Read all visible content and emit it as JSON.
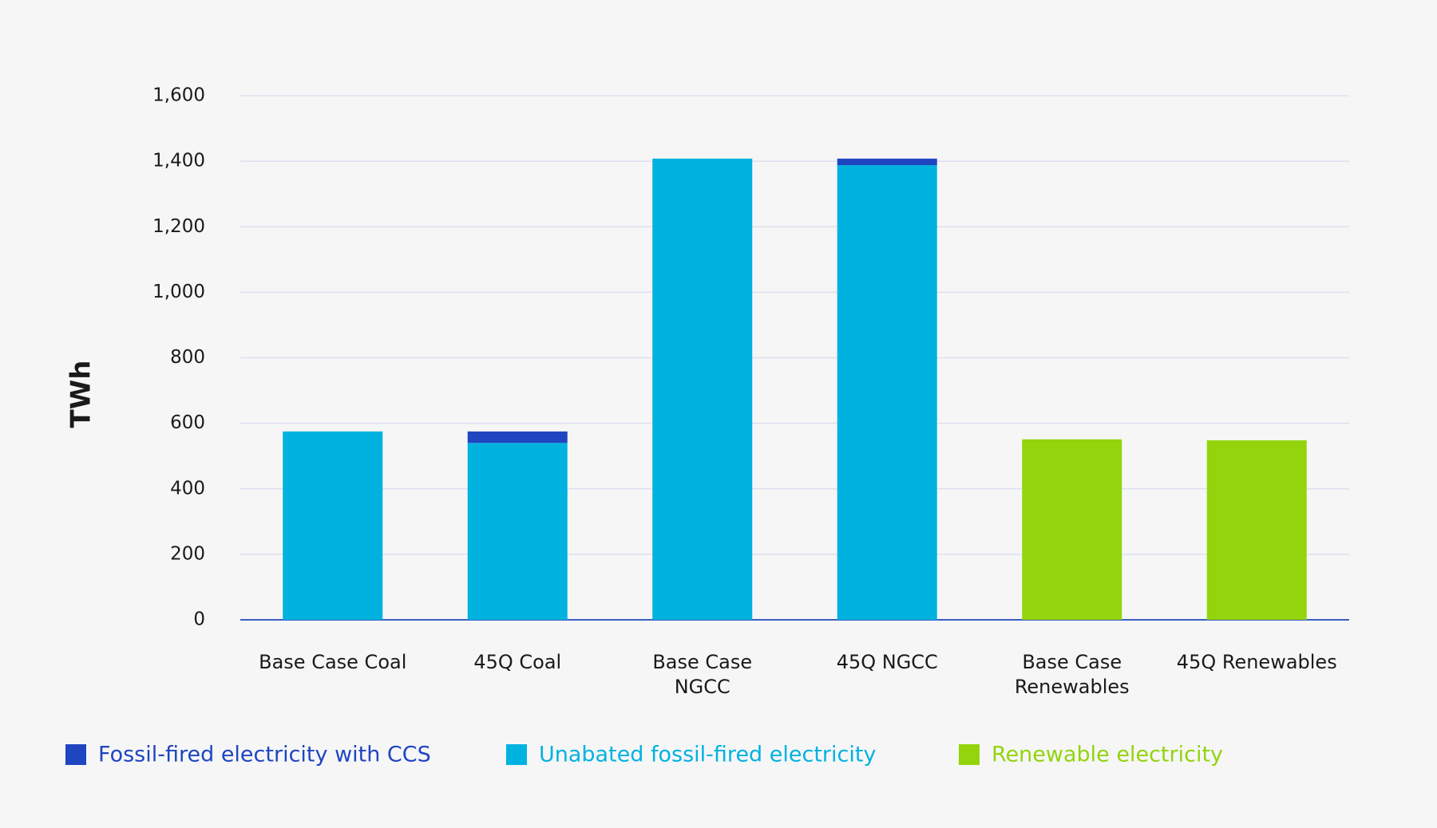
{
  "chart_data": {
    "type": "stacked_bar",
    "y_label": "TWh",
    "categories": [
      "Base Case Coal",
      "45Q Coal",
      "Base Case\nNGCC",
      "45Q NGCC",
      "Base Case\nRenewables",
      "45Q Renewables"
    ],
    "series": [
      {
        "name": "Fossil-fired electricity with CCS",
        "color": "#1f45c0",
        "values": [
          0,
          35,
          0,
          20,
          0,
          0
        ]
      },
      {
        "name": "Unabated fossil-fired electricity",
        "color": "#00b2e0",
        "values": [
          575,
          540,
          1408,
          1388,
          0,
          0
        ]
      },
      {
        "name": "Renewable electricity",
        "color": "#93d40c",
        "values": [
          0,
          0,
          0,
          0,
          551,
          548
        ]
      }
    ],
    "stack_order": [
      1,
      0,
      2
    ],
    "ylim": [
      0,
      1600
    ],
    "yticks": [
      {
        "value": 0,
        "label": "0"
      },
      {
        "value": 200,
        "label": "200"
      },
      {
        "value": 400,
        "label": "400"
      },
      {
        "value": 600,
        "label": "600"
      },
      {
        "value": 800,
        "label": "800"
      },
      {
        "value": 1000,
        "label": "1,000"
      },
      {
        "value": 1200,
        "label": "1,200"
      },
      {
        "value": 1400,
        "label": "1,400"
      },
      {
        "value": 1600,
        "label": "1,600"
      }
    ],
    "grid": true
  }
}
